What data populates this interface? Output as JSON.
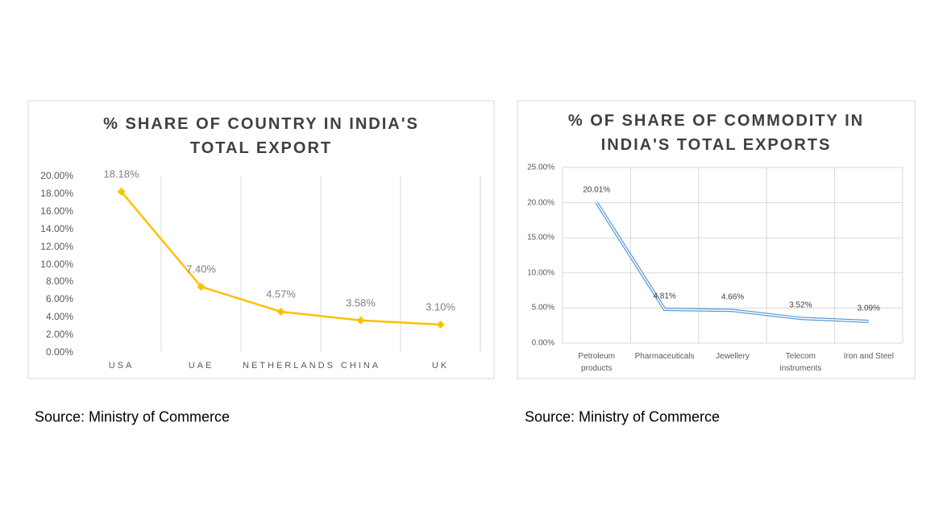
{
  "chart_data": [
    {
      "type": "line",
      "title": "% SHARE OF COUNTRY IN INDIA'S TOTAL EXPORT",
      "categories": [
        "USA",
        "UAE",
        "NETHERLANDS",
        "CHINA",
        "UK"
      ],
      "values": [
        18.18,
        7.4,
        4.57,
        3.58,
        3.1
      ],
      "value_labels": [
        "18.18%",
        "7.40%",
        "4.57%",
        "3.58%",
        "3.10%"
      ],
      "color": "#ffc000",
      "ylim": [
        0,
        20
      ],
      "yticks": [
        {
          "value": 0,
          "label": "0.00%"
        },
        {
          "value": 2,
          "label": "2.00%"
        },
        {
          "value": 4,
          "label": "4.00%"
        },
        {
          "value": 6,
          "label": "6.00%"
        },
        {
          "value": 8,
          "label": "8.00%"
        },
        {
          "value": 10,
          "label": "10.00%"
        },
        {
          "value": 12,
          "label": "12.00%"
        },
        {
          "value": 14,
          "label": "14.00%"
        },
        {
          "value": 16,
          "label": "16.00%"
        },
        {
          "value": 18,
          "label": "18.00%"
        },
        {
          "value": 20,
          "label": "20.00%"
        }
      ],
      "grid": "x",
      "source": "Source: Ministry of Commerce"
    },
    {
      "type": "line",
      "title": "% OF SHARE OF COMMODITY IN INDIA'S TOTAL EXPORTS",
      "categories": [
        "Petroleum products",
        "Pharmaceuticals",
        "Jewellery",
        "Telecom instruments",
        "Iron and Steel"
      ],
      "values": [
        20.01,
        4.81,
        4.66,
        3.52,
        3.09
      ],
      "value_labels": [
        "20.01%",
        "4.81%",
        "4.66%",
        "3.52%",
        "3.09%"
      ],
      "color": "#5b9bd5",
      "ylim": [
        0,
        25
      ],
      "yticks": [
        {
          "value": 0,
          "label": "0.00%"
        },
        {
          "value": 5,
          "label": "5.00%"
        },
        {
          "value": 10,
          "label": "10.00%"
        },
        {
          "value": 15,
          "label": "15.00%"
        },
        {
          "value": 20,
          "label": "20.00%"
        },
        {
          "value": 25,
          "label": "25.00%"
        }
      ],
      "grid": "both",
      "source": "Source: Ministry of Commerce"
    }
  ]
}
